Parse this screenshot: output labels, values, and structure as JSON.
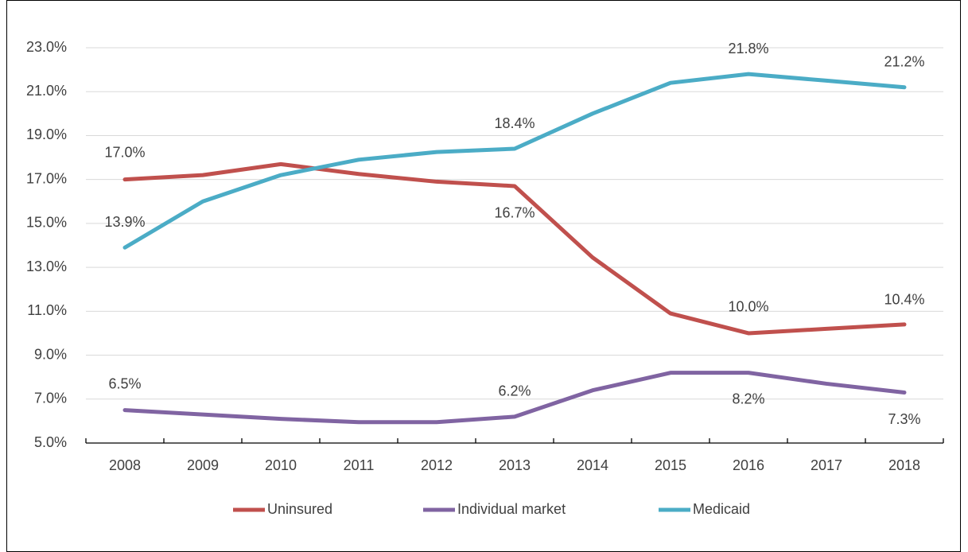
{
  "chart_data": {
    "type": "line",
    "categories": [
      "2008",
      "2009",
      "2010",
      "2011",
      "2012",
      "2013",
      "2014",
      "2015",
      "2016",
      "2017",
      "2018"
    ],
    "series": [
      {
        "name": "Uninsured",
        "color": "#c0504d",
        "values": [
          17.0,
          17.2,
          17.7,
          17.25,
          16.9,
          16.7,
          13.45,
          10.9,
          10.0,
          10.2,
          10.4
        ],
        "value_labels": [
          "17.0%",
          null,
          null,
          null,
          null,
          "16.7%",
          null,
          null,
          "10.0%",
          null,
          "10.4%"
        ]
      },
      {
        "name": "Individual market",
        "color": "#8064a2",
        "values": [
          6.5,
          6.3,
          6.1,
          5.95,
          5.95,
          6.2,
          7.4,
          8.2,
          8.2,
          7.7,
          7.3
        ],
        "value_labels": [
          "6.5%",
          null,
          null,
          null,
          null,
          "6.2%",
          null,
          null,
          "8.2%",
          null,
          "7.3%"
        ]
      },
      {
        "name": "Medicaid",
        "color": "#4bacc6",
        "values": [
          13.9,
          16.0,
          17.2,
          17.9,
          18.25,
          18.4,
          20.0,
          21.4,
          21.8,
          21.5,
          21.2
        ],
        "value_labels": [
          "13.9%",
          null,
          null,
          null,
          null,
          "18.4%",
          null,
          null,
          "21.8%",
          null,
          "21.2%"
        ]
      }
    ],
    "ylim": [
      5,
      23
    ],
    "yticks": [
      {
        "value": 5,
        "label": "5.0%"
      },
      {
        "value": 7,
        "label": "7.0%"
      },
      {
        "value": 9,
        "label": "9.0%"
      },
      {
        "value": 11,
        "label": "11.0%"
      },
      {
        "value": 13,
        "label": "13.0%"
      },
      {
        "value": 15,
        "label": "15.0%"
      },
      {
        "value": 17,
        "label": "17.0%"
      },
      {
        "value": 19,
        "label": "19.0%"
      },
      {
        "value": 21,
        "label": "21.0%"
      },
      {
        "value": 23,
        "label": "23.0%"
      }
    ],
    "grid": true,
    "legend": "bottom"
  }
}
